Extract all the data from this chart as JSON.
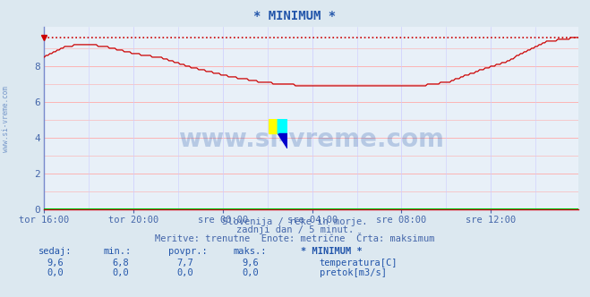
{
  "title": "* MINIMUM *",
  "bg_color": "#dce8f0",
  "plot_bg_color": "#e8f0f8",
  "grid_color_h": "#ffaaaa",
  "grid_color_v": "#ccccff",
  "line_color": "#cc0000",
  "hline_value": 9.6,
  "xlabel_color": "#4466aa",
  "ylabel_color": "#4466aa",
  "ylabel_values": [
    0,
    2,
    4,
    6,
    8
  ],
  "ylim": [
    0,
    10.2
  ],
  "xlim": [
    0,
    287
  ],
  "xtick_labels": [
    "tor 16:00",
    "tor 20:00",
    "sre 00:00",
    "sre 04:00",
    "sre 08:00",
    "sre 12:00"
  ],
  "xtick_positions": [
    0,
    48,
    96,
    144,
    192,
    240
  ],
  "watermark_text": "www.si-vreme.com",
  "watermark_color": "#2255aa",
  "watermark_alpha": 0.25,
  "subtitle1": "Slovenija / reke in morje.",
  "subtitle2": "zadnji dan / 5 minut.",
  "subtitle3": "Meritve: trenutne  Enote: metrične  Črta: maksimum",
  "subtitle_color": "#4466aa",
  "table_headers": [
    "sedaj:",
    "min.:",
    "povpr.:",
    "maks.:",
    "* MINIMUM *"
  ],
  "table_row1": [
    "9,6",
    "6,8",
    "7,7",
    "9,6"
  ],
  "table_row2": [
    "0,0",
    "0,0",
    "0,0",
    "0,0"
  ],
  "legend_label1": "temperatura[C]",
  "legend_color1": "#cc0000",
  "legend_label2": "pretok[m3/s]",
  "legend_color2": "#00bb00",
  "font_color": "#2255aa",
  "left_spine_color": "#7788cc",
  "bottom_spine_color": "#cc0000"
}
